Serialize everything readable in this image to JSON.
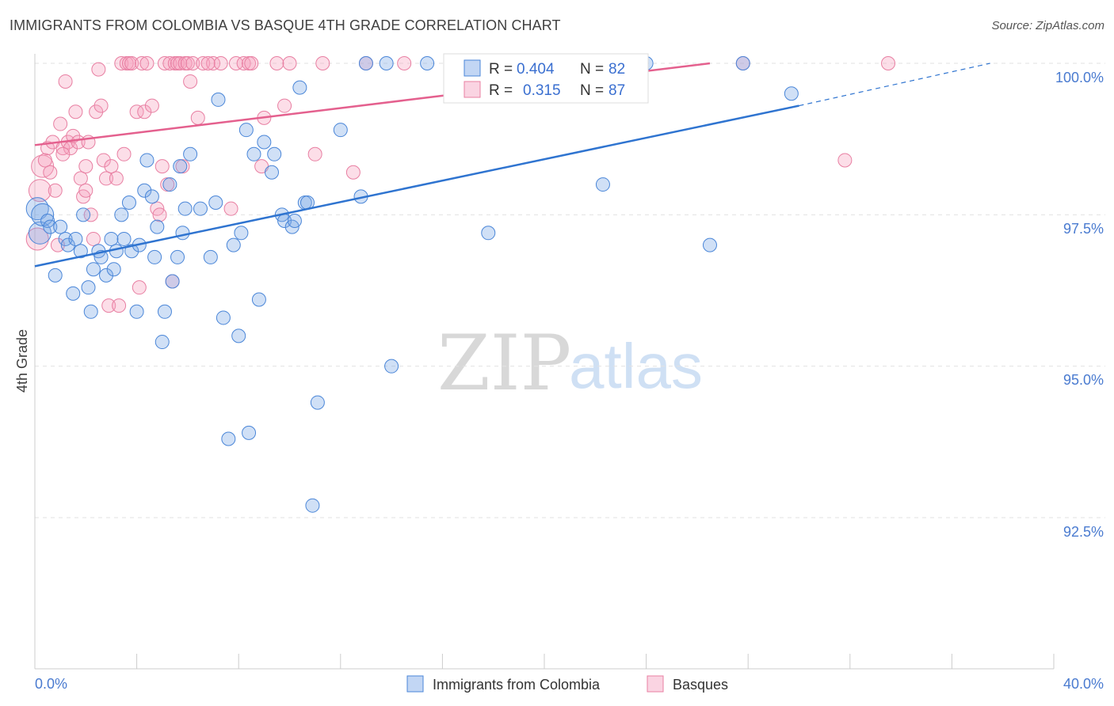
{
  "title": "IMMIGRANTS FROM COLOMBIA VS BASQUE 4TH GRADE CORRELATION CHART",
  "source": "Source: ZipAtlas.com",
  "watermark": {
    "zip": "ZIP",
    "atlas": "atlas"
  },
  "colors": {
    "blue": "#4a86d8",
    "blue_fill": "rgba(120,165,230,0.35)",
    "blue_line": "#2f74d0",
    "pink": "#e87fa2",
    "pink_fill": "rgba(245,160,190,0.35)",
    "pink_line": "#e4608e"
  },
  "legend": {
    "blue": {
      "r_label": "R = ",
      "r_value": "0.404",
      "n_label": "N = ",
      "n_value": "82"
    },
    "pink": {
      "r_label": "R = ",
      "r_value": "0.315",
      "n_label": "N = ",
      "n_value": "87"
    }
  },
  "chart_data": {
    "type": "scatter",
    "title": "IMMIGRANTS FROM COLOMBIA VS BASQUE 4TH GRADE CORRELATION CHART",
    "xlabel": "",
    "ylabel": "4th Grade",
    "xlim": [
      0,
      40
    ],
    "ylim": [
      90.2,
      100.2
    ],
    "x_tick_labels": [
      "0.0%",
      "40.0%"
    ],
    "y_ticks": [
      92.5,
      95.0,
      97.5,
      100.0
    ],
    "y_tick_labels": [
      "92.5%",
      "95.0%",
      "97.5%",
      "100.0%"
    ],
    "series": [
      {
        "name": "Immigrants from Colombia",
        "color": "blue",
        "trend": {
          "x0": 0,
          "y0": 96.65,
          "x1": 30,
          "y1": 99.3,
          "dash_x1": 37.5,
          "dash_y1": 100.0
        },
        "points": [
          [
            0.1,
            97.6
          ],
          [
            0.2,
            97.2
          ],
          [
            0.3,
            97.5
          ],
          [
            0.5,
            97.4
          ],
          [
            0.6,
            97.3
          ],
          [
            0.8,
            96.5
          ],
          [
            1.0,
            97.3
          ],
          [
            1.2,
            97.1
          ],
          [
            1.3,
            97.0
          ],
          [
            1.5,
            96.2
          ],
          [
            1.6,
            97.1
          ],
          [
            1.8,
            96.9
          ],
          [
            1.9,
            97.5
          ],
          [
            2.1,
            96.3
          ],
          [
            2.2,
            95.9
          ],
          [
            2.3,
            96.6
          ],
          [
            2.5,
            96.9
          ],
          [
            2.6,
            96.8
          ],
          [
            2.8,
            96.5
          ],
          [
            3.0,
            97.1
          ],
          [
            3.1,
            96.6
          ],
          [
            3.2,
            96.9
          ],
          [
            3.4,
            97.5
          ],
          [
            3.5,
            97.1
          ],
          [
            3.7,
            97.7
          ],
          [
            3.8,
            96.9
          ],
          [
            4.0,
            95.9
          ],
          [
            4.1,
            97.0
          ],
          [
            4.3,
            97.9
          ],
          [
            4.4,
            98.4
          ],
          [
            4.6,
            97.8
          ],
          [
            4.7,
            96.8
          ],
          [
            4.8,
            97.3
          ],
          [
            5.0,
            95.4
          ],
          [
            5.1,
            95.9
          ],
          [
            5.3,
            98.0
          ],
          [
            5.4,
            96.4
          ],
          [
            5.6,
            96.8
          ],
          [
            5.7,
            98.3
          ],
          [
            5.8,
            97.2
          ],
          [
            5.9,
            97.6
          ],
          [
            6.1,
            98.5
          ],
          [
            6.5,
            97.6
          ],
          [
            6.9,
            96.8
          ],
          [
            7.1,
            97.7
          ],
          [
            7.2,
            99.4
          ],
          [
            7.4,
            95.8
          ],
          [
            7.6,
            93.8
          ],
          [
            7.8,
            97.0
          ],
          [
            8.0,
            95.5
          ],
          [
            8.1,
            97.2
          ],
          [
            8.3,
            98.9
          ],
          [
            8.4,
            93.9
          ],
          [
            8.6,
            98.5
          ],
          [
            8.8,
            96.1
          ],
          [
            9.0,
            98.7
          ],
          [
            9.3,
            98.2
          ],
          [
            9.4,
            98.5
          ],
          [
            9.7,
            97.5
          ],
          [
            9.8,
            97.4
          ],
          [
            10.1,
            97.3
          ],
          [
            10.2,
            97.4
          ],
          [
            10.4,
            99.6
          ],
          [
            10.6,
            97.7
          ],
          [
            10.7,
            97.7
          ],
          [
            10.9,
            92.7
          ],
          [
            11.1,
            94.4
          ],
          [
            12.0,
            98.9
          ],
          [
            12.8,
            97.8
          ],
          [
            13.0,
            100.0
          ],
          [
            13.8,
            100.0
          ],
          [
            14.0,
            95.0
          ],
          [
            15.4,
            100.0
          ],
          [
            17.8,
            97.2
          ],
          [
            20.6,
            100.0
          ],
          [
            22.3,
            98.0
          ],
          [
            24.0,
            100.0
          ],
          [
            26.5,
            97.0
          ],
          [
            27.8,
            100.0
          ],
          [
            29.7,
            99.5
          ],
          [
            19.6,
            100.0
          ],
          [
            18.2,
            100.0
          ]
        ]
      },
      {
        "name": "Basques",
        "color": "pink",
        "trend": {
          "x0": 0,
          "y0": 98.65,
          "x1": 26.5,
          "y1": 100.0
        },
        "points": [
          [
            0.1,
            97.1
          ],
          [
            0.2,
            97.9
          ],
          [
            0.3,
            98.3
          ],
          [
            0.4,
            98.4
          ],
          [
            0.5,
            98.6
          ],
          [
            0.7,
            98.7
          ],
          [
            0.8,
            97.9
          ],
          [
            0.9,
            97.0
          ],
          [
            1.0,
            99.0
          ],
          [
            1.1,
            98.6
          ],
          [
            1.2,
            99.7
          ],
          [
            1.3,
            98.7
          ],
          [
            1.4,
            98.6
          ],
          [
            1.5,
            98.8
          ],
          [
            1.6,
            99.2
          ],
          [
            1.7,
            98.7
          ],
          [
            1.8,
            98.1
          ],
          [
            1.9,
            97.8
          ],
          [
            2.0,
            98.3
          ],
          [
            2.1,
            98.7
          ],
          [
            2.2,
            97.5
          ],
          [
            2.3,
            97.1
          ],
          [
            2.4,
            99.2
          ],
          [
            2.5,
            99.9
          ],
          [
            2.6,
            99.3
          ],
          [
            2.7,
            98.4
          ],
          [
            2.8,
            98.1
          ],
          [
            2.9,
            96.0
          ],
          [
            3.0,
            98.3
          ],
          [
            3.2,
            98.1
          ],
          [
            3.4,
            100.0
          ],
          [
            3.5,
            98.5
          ],
          [
            3.6,
            100.0
          ],
          [
            3.7,
            100.0
          ],
          [
            3.8,
            100.0
          ],
          [
            4.0,
            99.2
          ],
          [
            4.1,
            96.3
          ],
          [
            4.2,
            100.0
          ],
          [
            4.3,
            99.2
          ],
          [
            4.4,
            100.0
          ],
          [
            4.6,
            99.3
          ],
          [
            4.8,
            97.6
          ],
          [
            5.0,
            98.3
          ],
          [
            5.1,
            100.0
          ],
          [
            5.2,
            98.0
          ],
          [
            5.3,
            100.0
          ],
          [
            5.4,
            96.4
          ],
          [
            5.5,
            100.0
          ],
          [
            5.6,
            100.0
          ],
          [
            5.7,
            100.0
          ],
          [
            5.8,
            98.3
          ],
          [
            5.9,
            100.0
          ],
          [
            6.0,
            100.0
          ],
          [
            6.1,
            99.7
          ],
          [
            6.2,
            100.0
          ],
          [
            6.4,
            99.1
          ],
          [
            6.6,
            100.0
          ],
          [
            7.0,
            100.0
          ],
          [
            7.3,
            100.0
          ],
          [
            7.7,
            97.6
          ],
          [
            7.9,
            100.0
          ],
          [
            8.2,
            100.0
          ],
          [
            8.4,
            100.0
          ],
          [
            8.5,
            100.0
          ],
          [
            8.9,
            98.3
          ],
          [
            9.0,
            99.1
          ],
          [
            9.5,
            100.0
          ],
          [
            10.0,
            100.0
          ],
          [
            11.0,
            98.5
          ],
          [
            11.3,
            100.0
          ],
          [
            12.5,
            98.2
          ],
          [
            13.0,
            100.0
          ],
          [
            14.5,
            100.0
          ],
          [
            16.5,
            100.0
          ],
          [
            17.5,
            99.7
          ],
          [
            19.0,
            100.0
          ],
          [
            21.0,
            100.0
          ],
          [
            27.8,
            100.0
          ],
          [
            31.8,
            98.4
          ],
          [
            33.5,
            100.0
          ],
          [
            0.6,
            98.2
          ],
          [
            1.1,
            98.5
          ],
          [
            2.0,
            97.9
          ],
          [
            3.3,
            96.0
          ],
          [
            4.9,
            97.5
          ],
          [
            6.8,
            100.0
          ],
          [
            9.8,
            99.3
          ]
        ]
      }
    ]
  },
  "bottom_legend": [
    "Immigrants from Colombia",
    "Basques"
  ]
}
